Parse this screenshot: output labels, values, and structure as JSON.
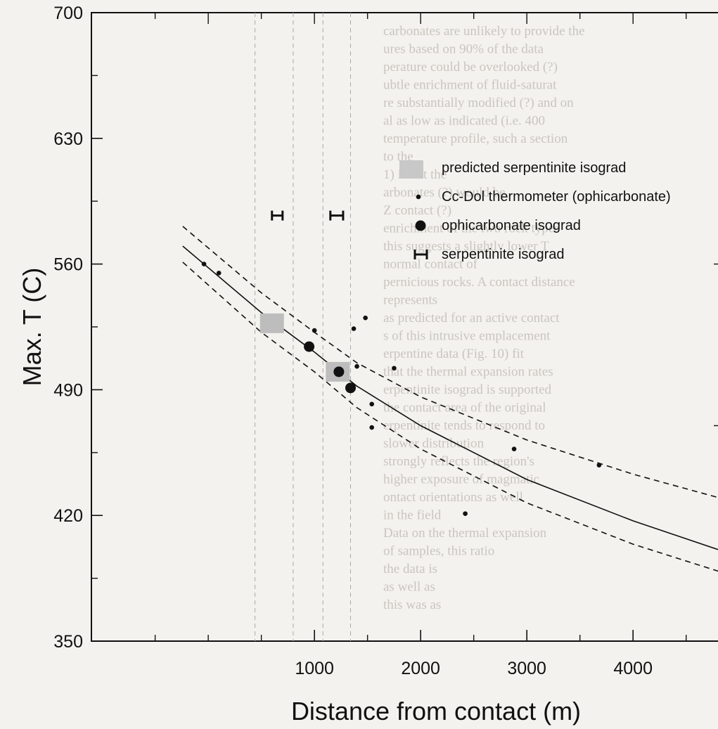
{
  "chart_data": {
    "type": "scatter",
    "xlabel": "Distance from contact (m)",
    "ylabel": "Max. T (C)",
    "xlim": [
      -1100,
      4800
    ],
    "ylim": [
      350,
      700
    ],
    "xticks": [
      1000,
      2000,
      3000,
      4000
    ],
    "yticks": [
      350,
      420,
      490,
      560,
      630,
      700
    ],
    "legend": [
      "predicted serpentinite isograd",
      "Cc-Dol thermometer (ophicarbonate)",
      "ophicarbonate isograd",
      "serpentinite isograd"
    ],
    "predicted_serpentinite_isograd": [
      {
        "x": 600,
        "y": 527
      },
      {
        "x": 1220,
        "y": 500
      }
    ],
    "cc_dol_thermometer": [
      {
        "x": -40,
        "y": 560
      },
      {
        "x": 100,
        "y": 555
      },
      {
        "x": 1000,
        "y": 523
      },
      {
        "x": 1370,
        "y": 524
      },
      {
        "x": 1480,
        "y": 530
      },
      {
        "x": 1400,
        "y": 503
      },
      {
        "x": 1540,
        "y": 482
      },
      {
        "x": 1540,
        "y": 469
      },
      {
        "x": 1750,
        "y": 502
      },
      {
        "x": 2420,
        "y": 421
      },
      {
        "x": 2880,
        "y": 457
      },
      {
        "x": 3680,
        "y": 448
      }
    ],
    "ophicarbonate_isograd": [
      {
        "x": 950,
        "y": 514
      },
      {
        "x": 1230,
        "y": 500
      },
      {
        "x": 1340,
        "y": 491
      }
    ],
    "serpentinite_isograd": [
      {
        "x": 650,
        "y": 587,
        "x_err": [
          600,
          700
        ]
      },
      {
        "x": 1210,
        "y": 587,
        "x_err": [
          1150,
          1270
        ]
      }
    ],
    "vertical_dashed_lines_x": [
      440,
      800,
      1080,
      1340
    ],
    "model_curve": [
      [
        -240,
        570
      ],
      [
        500,
        533
      ],
      [
        1000,
        511
      ],
      [
        1400,
        492
      ],
      [
        2000,
        470
      ],
      [
        3000,
        440
      ],
      [
        4000,
        417
      ],
      [
        4800,
        401
      ]
    ],
    "model_curve_upper": [
      [
        -240,
        581
      ],
      [
        500,
        544
      ],
      [
        1000,
        522
      ],
      [
        1400,
        505
      ],
      [
        2000,
        486
      ],
      [
        3000,
        462
      ],
      [
        4000,
        443
      ],
      [
        4800,
        430
      ]
    ],
    "model_curve_lower": [
      [
        -240,
        561
      ],
      [
        500,
        522
      ],
      [
        1000,
        500
      ],
      [
        1400,
        480
      ],
      [
        2000,
        457
      ],
      [
        3000,
        427
      ],
      [
        4000,
        404
      ],
      [
        4800,
        389
      ]
    ]
  },
  "background_text": [
    "carbonates are unlikely to provide the",
    "ures based on 90% of the data",
    "perature could be overlooked (?)",
    "ubtle enrichment of fluid-saturat",
    "re substantially modified (?) and on",
    "al as low as indicated (i.e. 400",
    "temperature profile, such a section",
    "to the",
    "1) is not the",
    "arbonates (?) would be",
    "Z contact (?)",
    "enrichment of the two rock types",
    "this suggests a slightly lower T",
    "normal contact of",
    "pernicious rocks. A contact distance",
    "represents",
    "as predicted for an active contact",
    "s of this intrusive emplacement",
    "erpentine data (Fig. 10) fit",
    "that the thermal expansion rates",
    "erpentinite isograd is supported",
    "the contact area of the original",
    "erpentinite tends to respond to",
    "slower distribution",
    "strongly reflects the region's",
    "higher exposure of magmatic",
    "ontact orientations as well",
    "in the field",
    "Data on the thermal expansion",
    "of samples, this ratio",
    "the data is",
    "as well as",
    "this was as"
  ]
}
